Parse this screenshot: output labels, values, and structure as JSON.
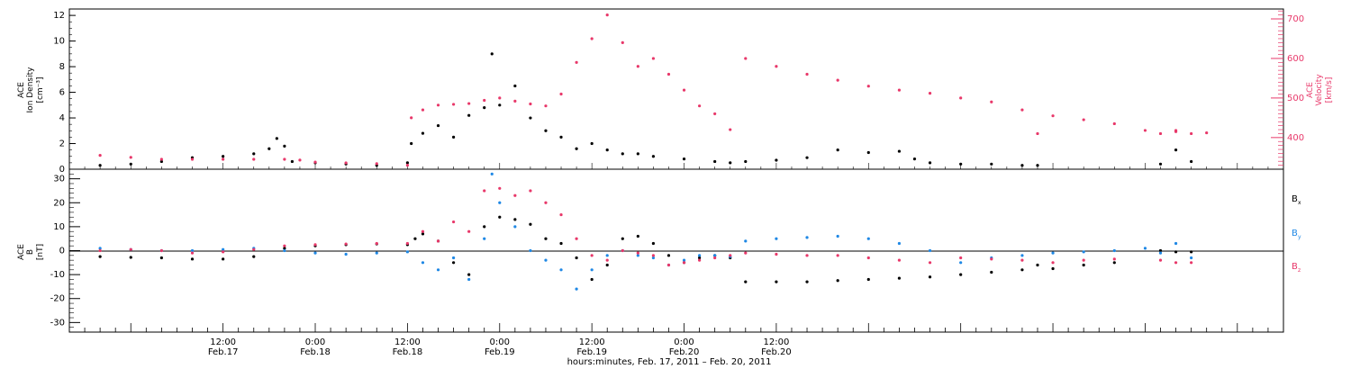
{
  "colors": {
    "black": "#000000",
    "red": "#e8386a",
    "blue": "#1f88e5"
  },
  "chart_data": [
    {
      "type": "scatter",
      "panel": "top",
      "ylabel_left": [
        "ACE",
        "Ion Density",
        "[cm⁻³]"
      ],
      "ylabel_right": [
        "ACE",
        "Velocity",
        "[km/s]"
      ],
      "y_left_ticks": [
        "0",
        "2",
        "4",
        "6",
        "8",
        "10",
        "12"
      ],
      "y_left_range": [
        0,
        12.5
      ],
      "y_right_ticks": [
        "400",
        "500",
        "600",
        "700"
      ],
      "y_right_range": [
        320,
        725
      ],
      "series": [
        {
          "name": "",
          "axis": "left",
          "color": "#000000",
          "points": [
            [
              -16,
              0.3
            ],
            [
              -12,
              0.4
            ],
            [
              -8,
              0.6
            ],
            [
              -4,
              0.9
            ],
            [
              0,
              1.0
            ],
            [
              4,
              1.2
            ],
            [
              6,
              1.6
            ],
            [
              7,
              2.4
            ],
            [
              8,
              1.8
            ],
            [
              9,
              0.6
            ],
            [
              12,
              0.5
            ],
            [
              16,
              0.4
            ],
            [
              20,
              0.3
            ],
            [
              24,
              0.5
            ],
            [
              24.5,
              2.0
            ],
            [
              26,
              2.8
            ],
            [
              28,
              3.4
            ],
            [
              30,
              2.5
            ],
            [
              32,
              4.2
            ],
            [
              34,
              4.8
            ],
            [
              35,
              9.0
            ],
            [
              36,
              5.0
            ],
            [
              38,
              6.5
            ],
            [
              40,
              4.0
            ],
            [
              42,
              3.0
            ],
            [
              44,
              2.5
            ],
            [
              46,
              1.6
            ],
            [
              48,
              2.0
            ],
            [
              50,
              1.5
            ],
            [
              52,
              1.2
            ],
            [
              54,
              1.2
            ],
            [
              56,
              1.0
            ],
            [
              60,
              0.8
            ],
            [
              64,
              0.6
            ],
            [
              66,
              0.5
            ],
            [
              68,
              0.6
            ],
            [
              72,
              0.7
            ],
            [
              76,
              0.9
            ],
            [
              80,
              1.5
            ],
            [
              84,
              1.3
            ],
            [
              88,
              1.4
            ],
            [
              90,
              0.8
            ],
            [
              92,
              0.5
            ],
            [
              96,
              0.4
            ],
            [
              100,
              0.4
            ],
            [
              104,
              0.3
            ],
            [
              106,
              0.3
            ],
            [
              122,
              0.4
            ],
            [
              124,
              1.5
            ],
            [
              126,
              0.6
            ]
          ]
        },
        {
          "name": "",
          "axis": "right",
          "color": "#e8386a",
          "points": [
            [
              -16,
              355
            ],
            [
              -12,
              350
            ],
            [
              -8,
              345
            ],
            [
              -4,
              345
            ],
            [
              0,
              345
            ],
            [
              4,
              345
            ],
            [
              8,
              345
            ],
            [
              10,
              343
            ],
            [
              12,
              338
            ],
            [
              16,
              336
            ],
            [
              20,
              334
            ],
            [
              24,
              330
            ],
            [
              24.5,
              450
            ],
            [
              26,
              470
            ],
            [
              28,
              482
            ],
            [
              30,
              484
            ],
            [
              32,
              486
            ],
            [
              34,
              494
            ],
            [
              36,
              500
            ],
            [
              38,
              492
            ],
            [
              40,
              485
            ],
            [
              42,
              480
            ],
            [
              44,
              510
            ],
            [
              46,
              590
            ],
            [
              48,
              650
            ],
            [
              50,
              710
            ],
            [
              52,
              640
            ],
            [
              54,
              580
            ],
            [
              56,
              600
            ],
            [
              58,
              560
            ],
            [
              60,
              520
            ],
            [
              62,
              480
            ],
            [
              64,
              460
            ],
            [
              66,
              420
            ],
            [
              68,
              600
            ],
            [
              72,
              580
            ],
            [
              76,
              560
            ],
            [
              80,
              545
            ],
            [
              84,
              530
            ],
            [
              88,
              520
            ],
            [
              92,
              512
            ],
            [
              96,
              500
            ],
            [
              100,
              490
            ],
            [
              104,
              470
            ],
            [
              108,
              455
            ],
            [
              112,
              445
            ],
            [
              116,
              435
            ],
            [
              120,
              418
            ],
            [
              124,
              415
            ],
            [
              128,
              412
            ],
            [
              106,
              410
            ],
            [
              122,
              410
            ],
            [
              124,
              418
            ],
            [
              126,
              410
            ]
          ]
        }
      ]
    },
    {
      "type": "scatter",
      "panel": "bottom",
      "ylabel_left": [
        "ACE",
        "B",
        "[nT]"
      ],
      "y_ticks": [
        "30",
        "20",
        "10",
        "0",
        "-10",
        "-20",
        "-30"
      ],
      "y_range": [
        -34,
        34
      ],
      "legend": [
        {
          "label": "B",
          "sub": "x",
          "color": "#000000"
        },
        {
          "label": "B",
          "sub": "y",
          "color": "#1f88e5"
        },
        {
          "label": "B",
          "sub": "z",
          "color": "#e8386a"
        }
      ],
      "series": [
        {
          "name": "Bx",
          "color": "#000000",
          "points": [
            [
              -16,
              -2.5
            ],
            [
              -12,
              -2.8
            ],
            [
              -8,
              -3.0
            ],
            [
              -4,
              -3.5
            ],
            [
              0,
              -3.5
            ],
            [
              4,
              -2.5
            ],
            [
              8,
              1.0
            ],
            [
              12,
              2.0
            ],
            [
              16,
              2.5
            ],
            [
              20,
              2.8
            ],
            [
              24,
              2.5
            ],
            [
              25,
              5.0
            ],
            [
              26,
              7.0
            ],
            [
              28,
              4.0
            ],
            [
              30,
              -5.0
            ],
            [
              32,
              -10.0
            ],
            [
              34,
              10.0
            ],
            [
              36,
              14.0
            ],
            [
              38,
              13.0
            ],
            [
              40,
              11.0
            ],
            [
              42,
              5.0
            ],
            [
              44,
              3.0
            ],
            [
              46,
              -3.0
            ],
            [
              48,
              -12.0
            ],
            [
              50,
              -6.0
            ],
            [
              52,
              5.0
            ],
            [
              54,
              6.0
            ],
            [
              56,
              3.0
            ],
            [
              58,
              -2.0
            ],
            [
              60,
              -5.0
            ],
            [
              62,
              -3.0
            ],
            [
              64,
              -2.0
            ],
            [
              66,
              -3.0
            ],
            [
              68,
              -13.0
            ],
            [
              72,
              -13.0
            ],
            [
              76,
              -13.0
            ],
            [
              80,
              -12.5
            ],
            [
              84,
              -12.0
            ],
            [
              88,
              -11.5
            ],
            [
              92,
              -11.0
            ],
            [
              96,
              -10.0
            ],
            [
              100,
              -9.0
            ],
            [
              104,
              -8.0
            ],
            [
              108,
              -7.5
            ],
            [
              112,
              -6.0
            ],
            [
              116,
              -5.0
            ],
            [
              106,
              -6.0
            ],
            [
              122,
              0.0
            ],
            [
              124,
              -0.5
            ],
            [
              126,
              -0.5
            ]
          ]
        },
        {
          "name": "By",
          "color": "#1f88e5",
          "points": [
            [
              -16,
              1.0
            ],
            [
              -12,
              0.5
            ],
            [
              -8,
              0.0
            ],
            [
              -4,
              0.0
            ],
            [
              0,
              0.5
            ],
            [
              4,
              1.0
            ],
            [
              8,
              0.0
            ],
            [
              12,
              -1.0
            ],
            [
              16,
              -1.5
            ],
            [
              20,
              -1.0
            ],
            [
              24,
              -0.5
            ],
            [
              26,
              -5.0
            ],
            [
              28,
              -8.0
            ],
            [
              30,
              -3.0
            ],
            [
              32,
              -12.0
            ],
            [
              34,
              5.0
            ],
            [
              35,
              32.0
            ],
            [
              36,
              20.0
            ],
            [
              38,
              10.0
            ],
            [
              40,
              0.0
            ],
            [
              42,
              -4.0
            ],
            [
              44,
              -8.0
            ],
            [
              46,
              -16.0
            ],
            [
              48,
              -8.0
            ],
            [
              50,
              -2.0
            ],
            [
              52,
              0.0
            ],
            [
              54,
              -2.0
            ],
            [
              56,
              -3.0
            ],
            [
              58,
              -6.0
            ],
            [
              60,
              -4.0
            ],
            [
              62,
              -2.0
            ],
            [
              64,
              -2.0
            ],
            [
              66,
              -2.5
            ],
            [
              68,
              4.0
            ],
            [
              72,
              5.0
            ],
            [
              76,
              5.5
            ],
            [
              80,
              6.0
            ],
            [
              84,
              5.0
            ],
            [
              88,
              3.0
            ],
            [
              92,
              0.0
            ],
            [
              96,
              -5.0
            ],
            [
              100,
              -3.0
            ],
            [
              104,
              -2.0
            ],
            [
              108,
              -1.0
            ],
            [
              112,
              -0.5
            ],
            [
              116,
              0.0
            ],
            [
              120,
              1.0
            ],
            [
              122,
              -1.0
            ],
            [
              124,
              3.0
            ],
            [
              126,
              -3.0
            ]
          ]
        },
        {
          "name": "Bz",
          "color": "#e8386a",
          "points": [
            [
              -16,
              0.0
            ],
            [
              -12,
              0.5
            ],
            [
              -8,
              0.0
            ],
            [
              -4,
              -1.0
            ],
            [
              0,
              -0.5
            ],
            [
              4,
              0.5
            ],
            [
              8,
              2.0
            ],
            [
              12,
              2.5
            ],
            [
              16,
              2.8
            ],
            [
              20,
              3.0
            ],
            [
              24,
              3.0
            ],
            [
              26,
              8.0
            ],
            [
              28,
              4.0
            ],
            [
              30,
              12.0
            ],
            [
              32,
              8.0
            ],
            [
              34,
              25.0
            ],
            [
              36,
              26.0
            ],
            [
              38,
              23.0
            ],
            [
              40,
              25.0
            ],
            [
              42,
              20.0
            ],
            [
              44,
              15.0
            ],
            [
              46,
              5.0
            ],
            [
              48,
              -2.0
            ],
            [
              50,
              -4.0
            ],
            [
              52,
              0.0
            ],
            [
              54,
              -1.0
            ],
            [
              56,
              -2.0
            ],
            [
              58,
              -6.0
            ],
            [
              60,
              -5.0
            ],
            [
              62,
              -4.0
            ],
            [
              64,
              -3.0
            ],
            [
              66,
              -2.0
            ],
            [
              68,
              -1.0
            ],
            [
              72,
              -1.5
            ],
            [
              76,
              -2.0
            ],
            [
              80,
              -2.0
            ],
            [
              84,
              -3.0
            ],
            [
              88,
              -4.0
            ],
            [
              92,
              -5.0
            ],
            [
              96,
              -3.0
            ],
            [
              100,
              -3.5
            ],
            [
              104,
              -4.0
            ],
            [
              108,
              -5.0
            ],
            [
              112,
              -4.0
            ],
            [
              116,
              -3.5
            ],
            [
              122,
              -4.0
            ],
            [
              124,
              -5.0
            ],
            [
              126,
              -5.0
            ]
          ]
        }
      ]
    }
  ],
  "x_axis": {
    "range_hours": [
      -20,
      138
    ],
    "major_ticks": [
      {
        "h": 0,
        "time": "12:00",
        "date": "Feb.17"
      },
      {
        "h": 12,
        "time": "0:00",
        "date": "Feb.18"
      },
      {
        "h": 24,
        "time": "12:00",
        "date": "Feb.18"
      },
      {
        "h": 36,
        "time": "0:00",
        "date": "Feb.19"
      },
      {
        "h": 48,
        "time": "12:00",
        "date": "Feb.19"
      },
      {
        "h": 60,
        "time": "0:00",
        "date": "Feb.20"
      },
      {
        "h": 72,
        "time": "12:00",
        "date": "Feb.20"
      }
    ],
    "title": "hours:minutes, Feb. 17, 2011 – Feb. 20, 2011"
  }
}
